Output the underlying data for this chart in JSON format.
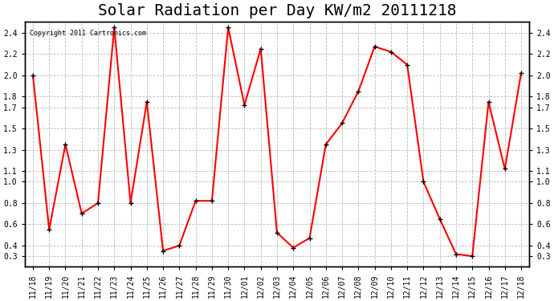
{
  "title": "Solar Radiation per Day KW/m2 20111218",
  "copyright_text": "Copyright 2011 Cartronics.com",
  "line_color": "#ff0000",
  "background_color": "#ffffff",
  "grid_color": "#aaaaaa",
  "dates": [
    "11/18",
    "11/19",
    "11/20",
    "11/21",
    "11/22",
    "11/23",
    "11/24",
    "11/25",
    "11/26",
    "11/27",
    "11/28",
    "11/29",
    "11/30",
    "12/01",
    "12/02",
    "12/03",
    "12/04",
    "12/05",
    "12/06",
    "12/07",
    "12/08",
    "12/09",
    "12/10",
    "12/11",
    "12/12",
    "12/13",
    "12/14",
    "12/15",
    "12/16",
    "12/17",
    "12/18"
  ],
  "values": [
    2.0,
    0.55,
    1.35,
    0.7,
    0.8,
    2.45,
    0.8,
    1.75,
    0.35,
    0.4,
    0.82,
    0.82,
    2.45,
    1.72,
    2.25,
    0.52,
    0.38,
    0.47,
    1.35,
    1.55,
    1.85,
    2.27,
    2.22,
    2.1,
    1.0,
    0.65,
    0.32,
    0.3,
    1.75,
    1.12,
    2.02
  ],
  "ylim": [
    0.2,
    2.5
  ],
  "yticks": [
    0.3,
    0.4,
    0.6,
    0.8,
    1.0,
    1.1,
    1.3,
    1.5,
    1.7,
    1.8,
    2.0,
    2.2,
    2.4
  ],
  "title_fontsize": 14,
  "tick_fontsize": 7,
  "marker": "+",
  "marker_size": 5,
  "line_width": 1.5
}
